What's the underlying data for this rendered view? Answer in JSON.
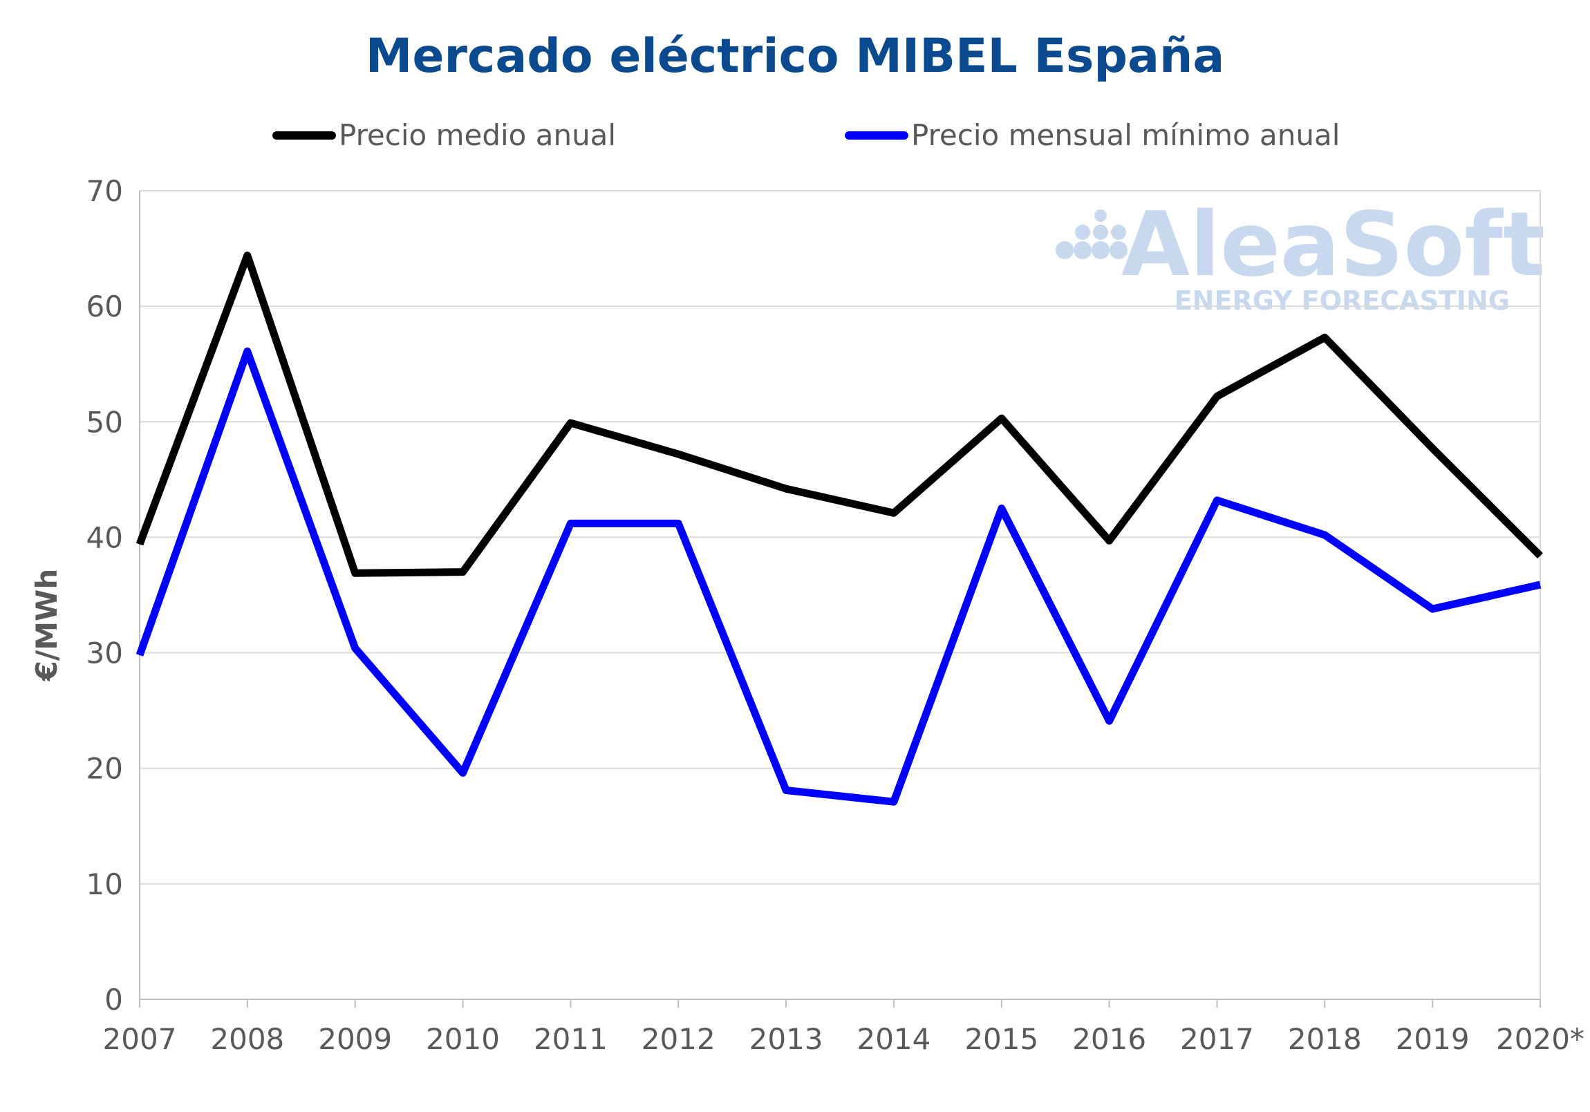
{
  "chart_data": {
    "type": "line",
    "title": "Mercado eléctrico MIBEL España",
    "ylabel": "€/MWh",
    "xlabel": "",
    "categories": [
      "2007",
      "2008",
      "2009",
      "2010",
      "2011",
      "2012",
      "2013",
      "2014",
      "2015",
      "2016",
      "2017",
      "2018",
      "2019",
      "2020*"
    ],
    "ylim": [
      0,
      70
    ],
    "yticks": [
      "0",
      "10",
      "20",
      "30",
      "40",
      "50",
      "60",
      "70"
    ],
    "grid": true,
    "legend_position": "top",
    "series": [
      {
        "name": "Precio medio anual",
        "color": "#000000",
        "values": [
          39.4,
          64.4,
          36.9,
          37.0,
          49.9,
          47.2,
          44.2,
          42.1,
          50.3,
          39.7,
          52.2,
          57.3,
          47.7,
          38.4
        ]
      },
      {
        "name": "Precio mensual mínimo anual",
        "color": "#0000ff",
        "values": [
          29.8,
          56.1,
          30.4,
          19.6,
          41.2,
          41.2,
          18.1,
          17.1,
          42.5,
          24.1,
          43.2,
          40.2,
          33.8,
          35.9
        ]
      }
    ]
  },
  "watermark": {
    "brand": "AleaSoft",
    "tagline": "ENERGY FORECASTING",
    "color": "#c8d8ee"
  },
  "colors": {
    "title": "#0b4a8f",
    "axis_text": "#595959",
    "grid": "#d9d9d9",
    "axis": "#bfbfbf"
  }
}
